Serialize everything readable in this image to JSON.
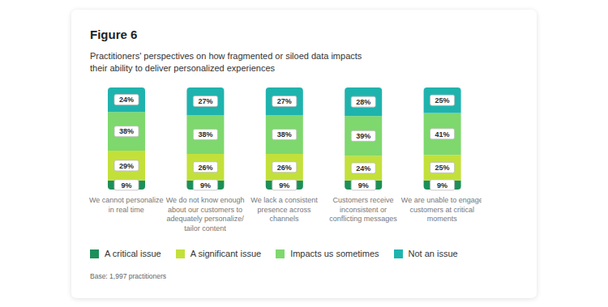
{
  "chart_data": {
    "type": "bar",
    "title": "Figure 6",
    "subtitle": "Practitioners' perspectives on how fragmented or siloed data impacts their ability to deliver personalized experiences",
    "annotations": [
      "Base: 1,997 practitioners"
    ],
    "categories": [
      "We cannot personalize in real time",
      "We do not know enough about our customers to adequately personalize/tailor content",
      "We lack a consistent presence across channels",
      "Customers receive inconsistent or conflicting messages",
      "We are unable to engage customers at critical moments"
    ],
    "series": [
      {
        "name": "A critical issue",
        "color": "#1d8f5a",
        "values": [
          9,
          9,
          9,
          9,
          9
        ],
        "value_labels": [
          "9%",
          "9%",
          "9%",
          "9%",
          "9%"
        ]
      },
      {
        "name": "A significant issue",
        "color": "#c3e03a",
        "values": [
          29,
          26,
          26,
          24,
          25
        ],
        "value_labels": [
          "29%",
          "26%",
          "26%",
          "24%",
          "25%"
        ]
      },
      {
        "name": "Impacts us sometimes",
        "color": "#7ed86d",
        "values": [
          38,
          38,
          38,
          39,
          41
        ],
        "value_labels": [
          "38%",
          "38%",
          "38%",
          "39%",
          "41%"
        ]
      },
      {
        "name": "Not an issue",
        "color": "#1fb3ae",
        "values": [
          24,
          27,
          27,
          28,
          25
        ],
        "value_labels": [
          "24%",
          "27%",
          "27%",
          "28%",
          "25%"
        ]
      }
    ],
    "stacked": true,
    "data_labels": true,
    "tick_labels": "x",
    "ylim": [
      0,
      100
    ],
    "legend": "bottom"
  }
}
